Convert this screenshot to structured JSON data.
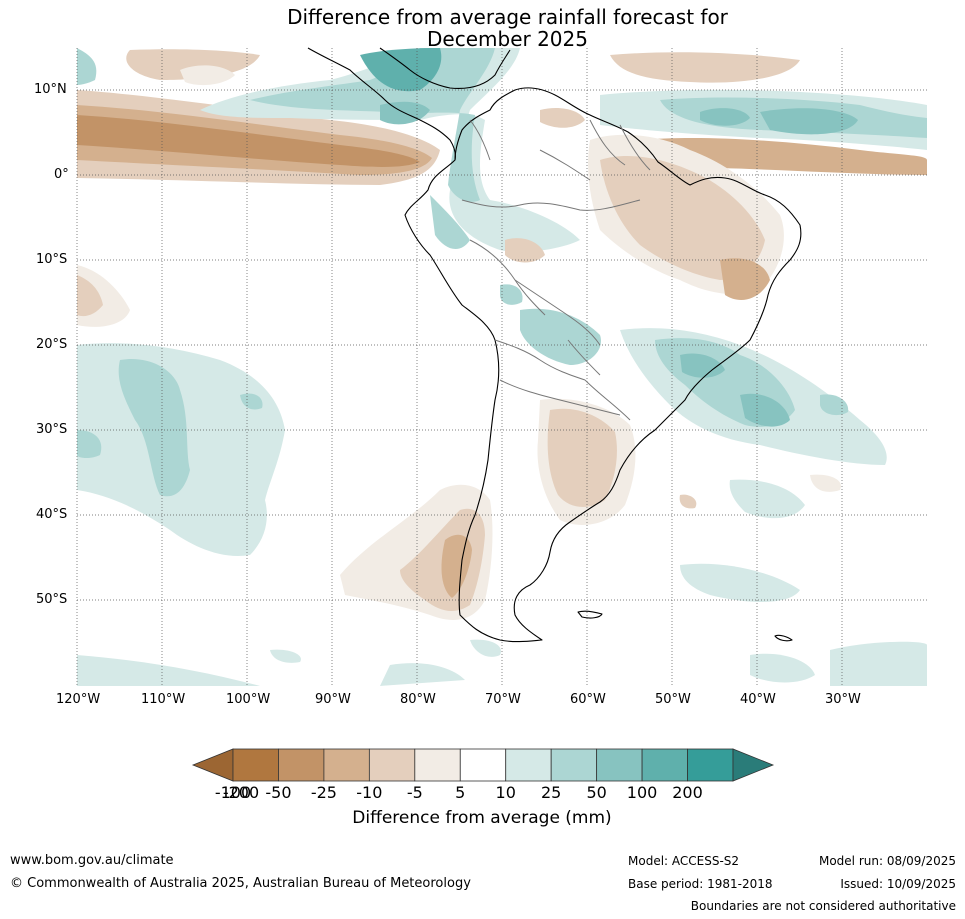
{
  "title_line1": "Difference from average rainfall forecast for",
  "title_line2": "December 2025",
  "lat_labels": [
    "10°N",
    "0°",
    "10°S",
    "20°S",
    "30°S",
    "40°S",
    "50°S"
  ],
  "lon_labels": [
    "120°W",
    "110°W",
    "100°W",
    "90°W",
    "80°W",
    "70°W",
    "60°W",
    "50°W",
    "40°W",
    "30°W"
  ],
  "legend": {
    "title": "Difference from average (mm)",
    "ticks": [
      "-200",
      "-100",
      "-50",
      "-25",
      "-10",
      "-5",
      "5",
      "10",
      "25",
      "50",
      "100",
      "200"
    ],
    "colors": [
      "#9c6633",
      "#b0773f",
      "#c29367",
      "#d4b08e",
      "#e4cfbd",
      "#f2ece5",
      "#ffffff",
      "#d5e9e7",
      "#acd6d3",
      "#87c3c0",
      "#5fb0ac",
      "#359d99",
      "#2a7c79"
    ]
  },
  "footer": {
    "website": "www.bom.gov.au/climate",
    "copyright": "© Commonwealth of Australia 2025, Australian Bureau of Meteorology",
    "model": "Model: ACCESS-S2",
    "base_period": "Base period: 1981-2018",
    "model_run": "Model run: 08/09/2025",
    "issued": "Issued: 10/09/2025",
    "disclaimer": "Boundaries are not considered authoritative"
  }
}
